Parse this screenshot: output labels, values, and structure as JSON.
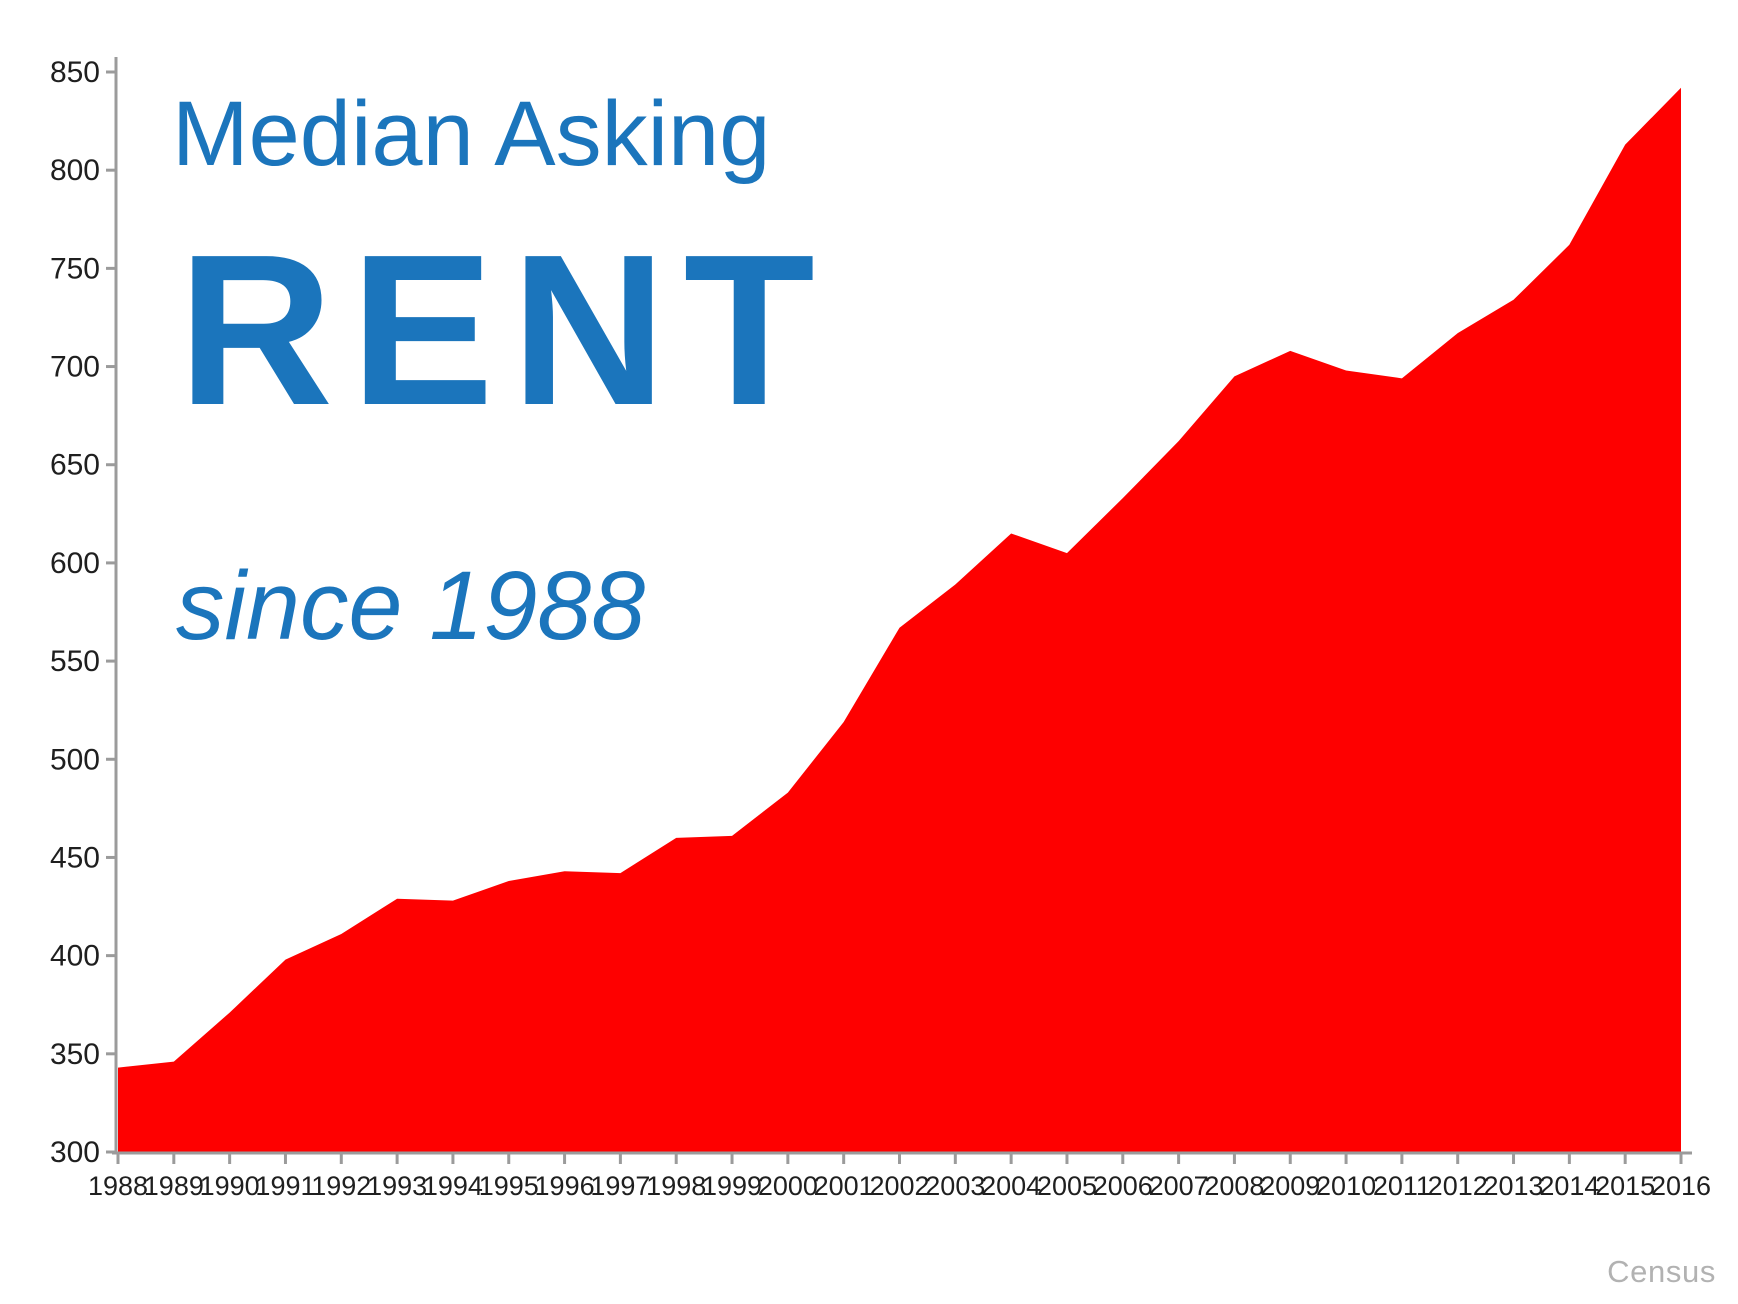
{
  "title": {
    "line1": "Median Asking",
    "line2": "RENT",
    "line3": "since 1988"
  },
  "source": "Census",
  "colors": {
    "accent_blue": "#1B75BC",
    "area_red": "#FE0000",
    "axis_gray": "#9B9B9B",
    "label_black": "#1F1F1F",
    "source_gray": "#B2B2B2"
  },
  "chart_data": {
    "type": "area",
    "title": "Median Asking RENT since 1988",
    "xlabel": "",
    "ylabel": "",
    "x": [
      1988,
      1989,
      1990,
      1991,
      1992,
      1993,
      1994,
      1995,
      1996,
      1997,
      1998,
      1999,
      2000,
      2001,
      2002,
      2003,
      2004,
      2005,
      2006,
      2007,
      2008,
      2009,
      2010,
      2011,
      2012,
      2013,
      2014,
      2015,
      2016
    ],
    "series": [
      {
        "name": "Median Asking Rent",
        "values": [
          343,
          346,
          371,
          398,
          411,
          429,
          428,
          438,
          443,
          442,
          460,
          461,
          483,
          519,
          567,
          589,
          615,
          605,
          633,
          662,
          695,
          708,
          698,
          694,
          717,
          734,
          762,
          813,
          842
        ]
      }
    ],
    "ylim": [
      300,
      850
    ],
    "y_ticks": [
      300,
      350,
      400,
      450,
      500,
      550,
      600,
      650,
      700,
      750,
      800,
      850
    ],
    "grid": false,
    "legend": "none",
    "source_note": "Census"
  }
}
